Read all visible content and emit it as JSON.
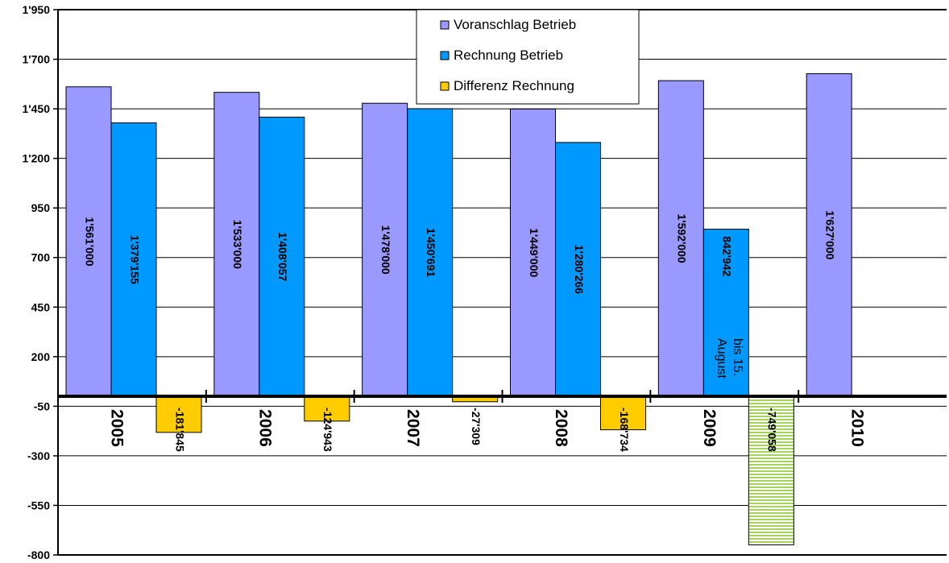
{
  "chart_data": {
    "type": "bar",
    "categories": [
      "2005",
      "2006",
      "2007",
      "2008",
      "2009",
      "2010"
    ],
    "ylim": [
      -800,
      1950
    ],
    "yticks": [
      "1'950",
      "1'700",
      "1'450",
      "1'200",
      "950",
      "700",
      "450",
      "200",
      "-50",
      "-300",
      "-550",
      "-800"
    ],
    "ytick_values": [
      1950,
      1700,
      1450,
      1200,
      950,
      700,
      450,
      200,
      -50,
      -300,
      -550,
      -800
    ],
    "grid": "horizontal",
    "legend_position": "top-center",
    "series": [
      {
        "name": "Voranschlag Betrieb",
        "color": "#9999ff",
        "values": [
          1561000,
          1533000,
          1478000,
          1449000,
          1592000,
          1627000
        ],
        "labels": [
          "1'561'000",
          "1'533'000",
          "1'478'000",
          "1'449'000",
          "1'592'000",
          "1'627'000"
        ]
      },
      {
        "name": "Rechnung Betrieb",
        "color": "#0099ff",
        "values": [
          1379155,
          1408057,
          1450691,
          1280266,
          842942,
          null
        ],
        "labels": [
          "1'379'155",
          "1'408'057",
          "1'450'691",
          "1'280'266",
          "842'942",
          ""
        ]
      },
      {
        "name": "Differenz Rechnung",
        "color": "#ffcc00",
        "values": [
          -181845,
          -124943,
          -27309,
          -168734,
          -749058,
          null
        ],
        "labels": [
          "-181'845",
          "-124'943",
          "-27'309",
          "-168'734",
          "-749'058",
          ""
        ]
      }
    ],
    "annotations": [
      {
        "category": "2009",
        "series": "Rechnung Betrieb",
        "text": [
          "bis 15.",
          "August"
        ]
      }
    ],
    "highlight": {
      "category": "2009",
      "series": "Differenz Rechnung",
      "color": "#ccee88",
      "pattern": "horizontal-stripes"
    }
  }
}
